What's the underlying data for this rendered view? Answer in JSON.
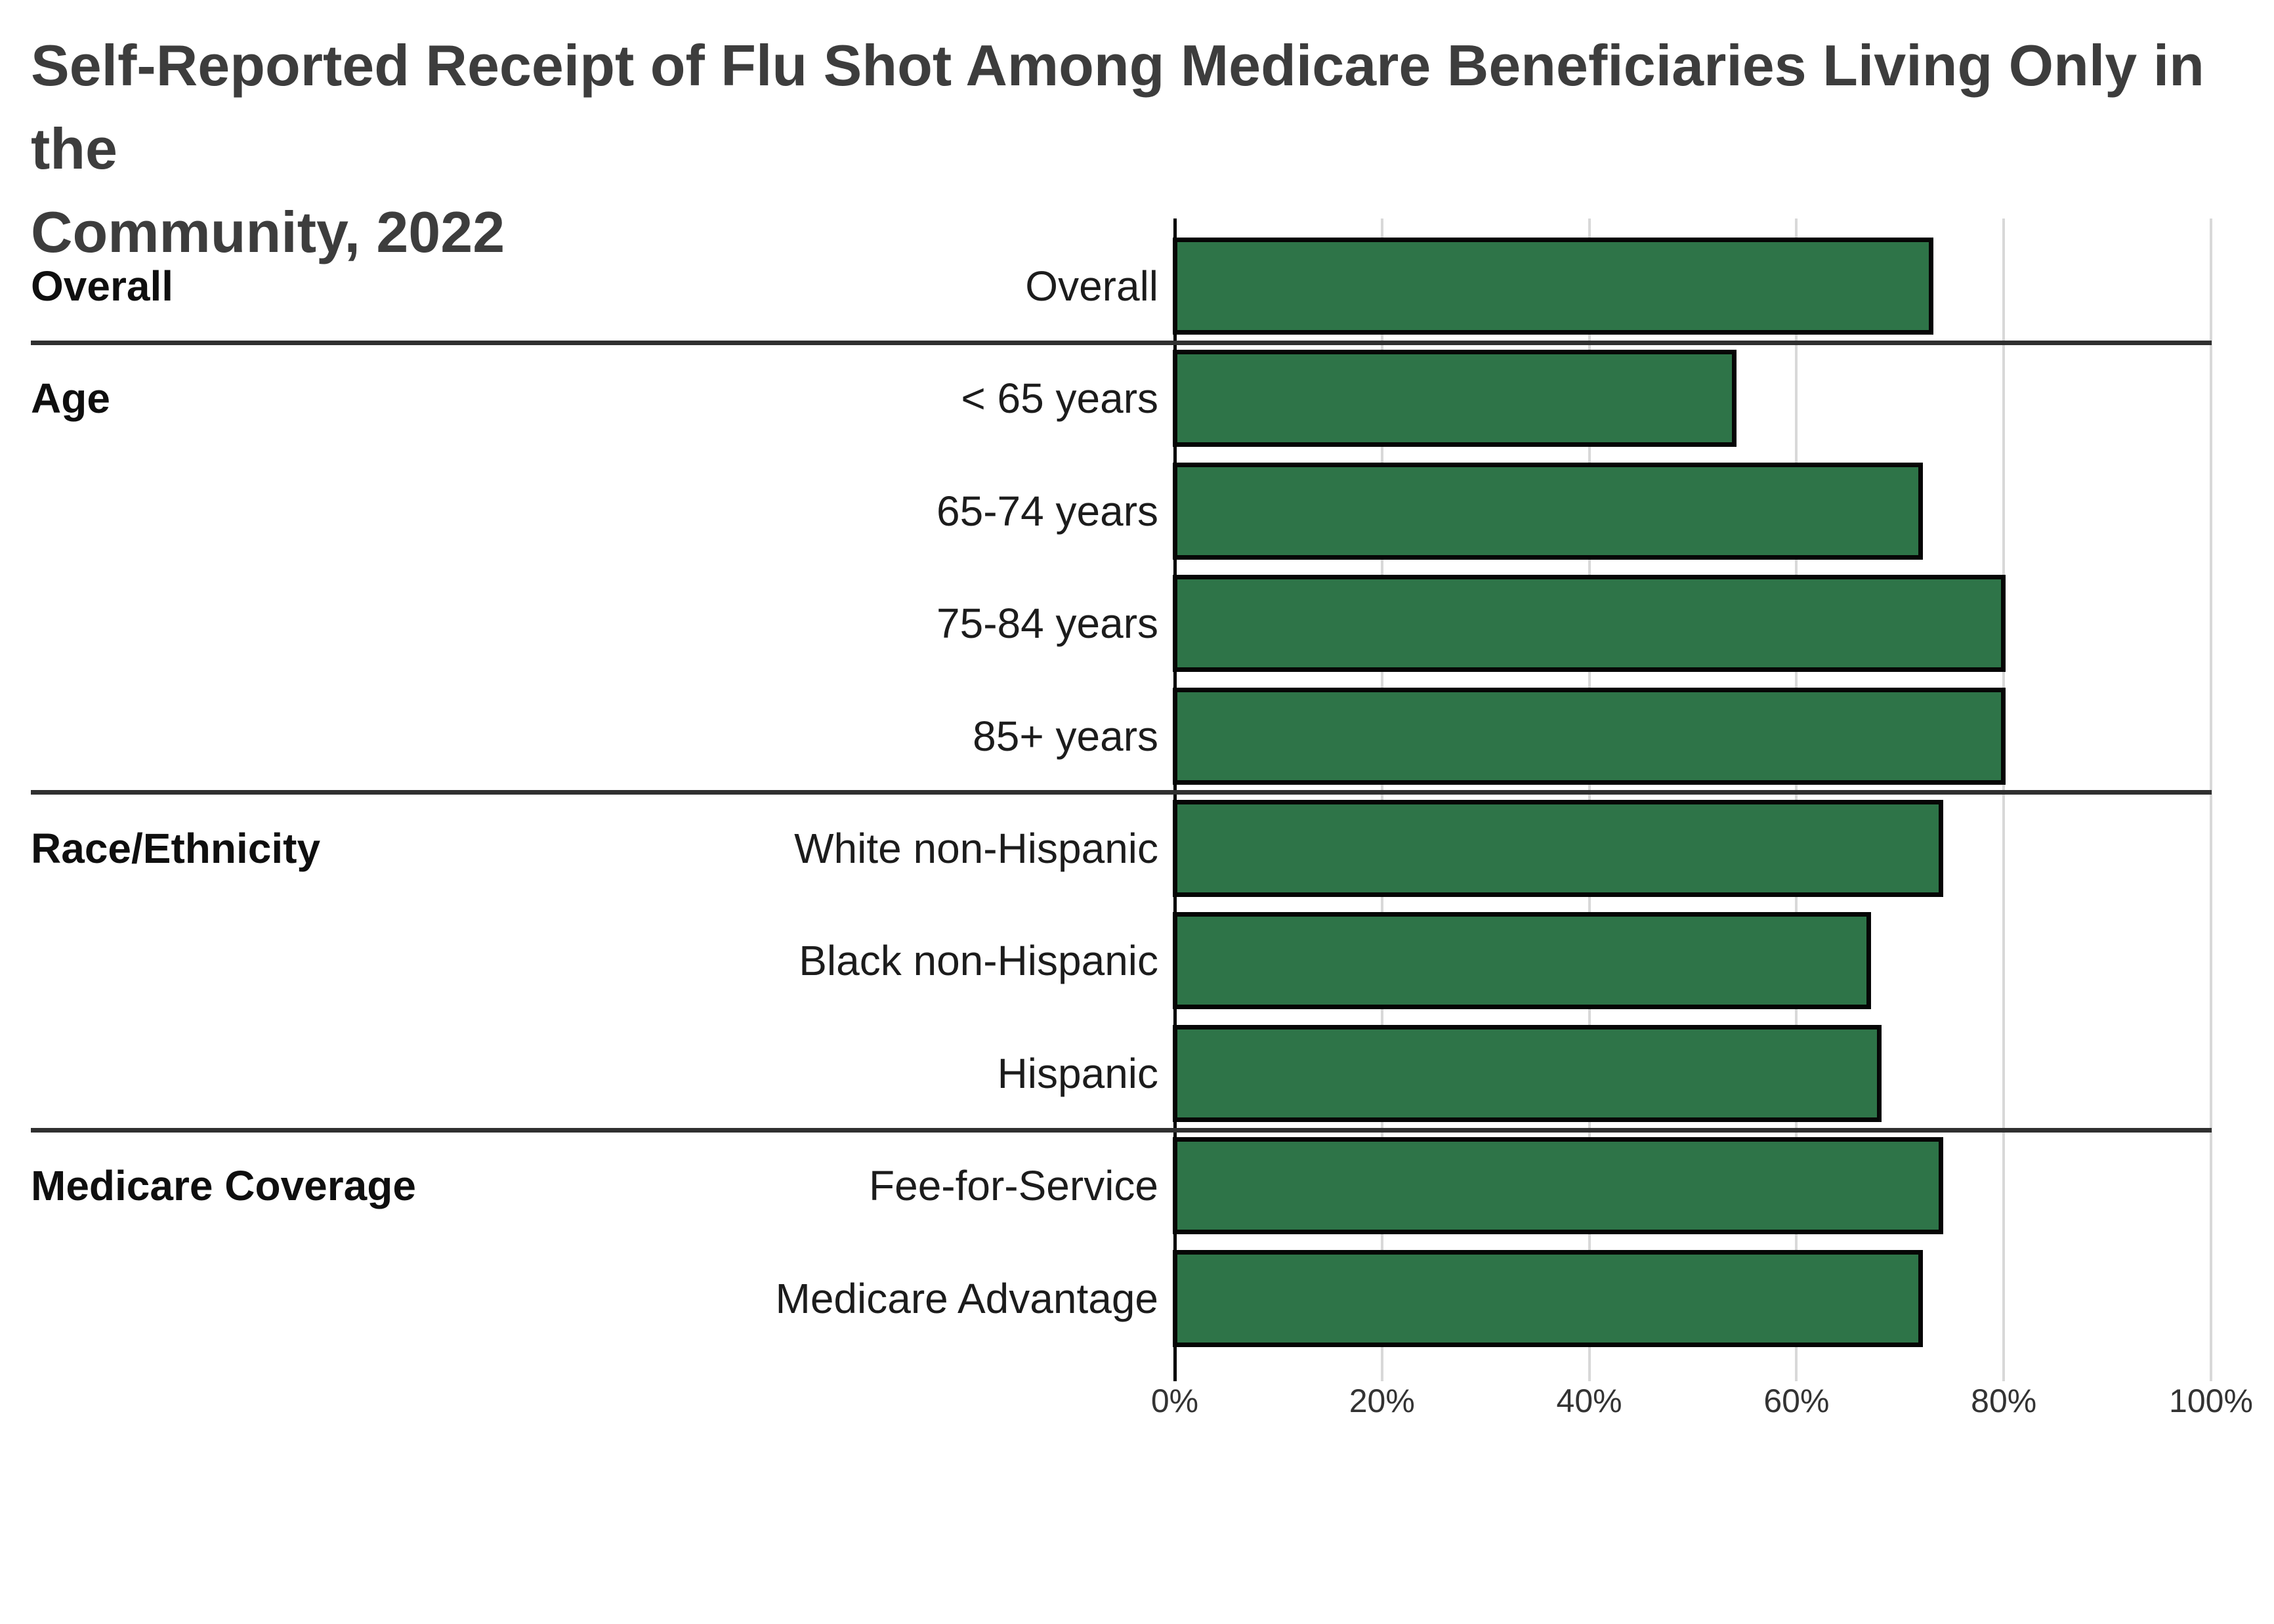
{
  "page": {
    "title": "Self-Reported Receipt of Flu Shot Among Medicare Beneficiaries Living Only in the\nCommunity, 2022"
  },
  "chart_data": {
    "type": "bar",
    "orientation": "horizontal",
    "title": "Self-Reported Receipt of Flu Shot Among Medicare Beneficiaries Living Only in the Community, 2022",
    "unit": "%",
    "x_axis": {
      "range": [
        0,
        100
      ],
      "tick_percents": [
        0,
        20,
        40,
        60,
        80,
        100
      ],
      "tick_labels": [
        "0%",
        "20%",
        "40%",
        "60%",
        "80%",
        "100%"
      ],
      "grid": true
    },
    "legend": "none",
    "bar_color": "#2E7448",
    "bar_border_color": "#060606",
    "gridline_color": "#d8d8d8",
    "divider_color": "#303030",
    "sections": [
      {
        "label": "Overall",
        "rows": [
          {
            "label": "Overall",
            "value": 73
          }
        ]
      },
      {
        "label": "Age",
        "rows": [
          {
            "label": "< 65 years",
            "value": 54
          },
          {
            "label": "65-74 years",
            "value": 72
          },
          {
            "label": "75-84 years",
            "value": 80
          },
          {
            "label": "85+ years",
            "value": 80
          }
        ]
      },
      {
        "label": "Race/Ethnicity",
        "rows": [
          {
            "label": "White non-Hispanic",
            "value": 74
          },
          {
            "label": "Black non-Hispanic",
            "value": 67
          },
          {
            "label": "Hispanic",
            "value": 68
          }
        ]
      },
      {
        "label": "Medicare Coverage",
        "rows": [
          {
            "label": "Fee-for-Service",
            "value": 74
          },
          {
            "label": "Medicare Advantage",
            "value": 72
          }
        ]
      }
    ]
  }
}
